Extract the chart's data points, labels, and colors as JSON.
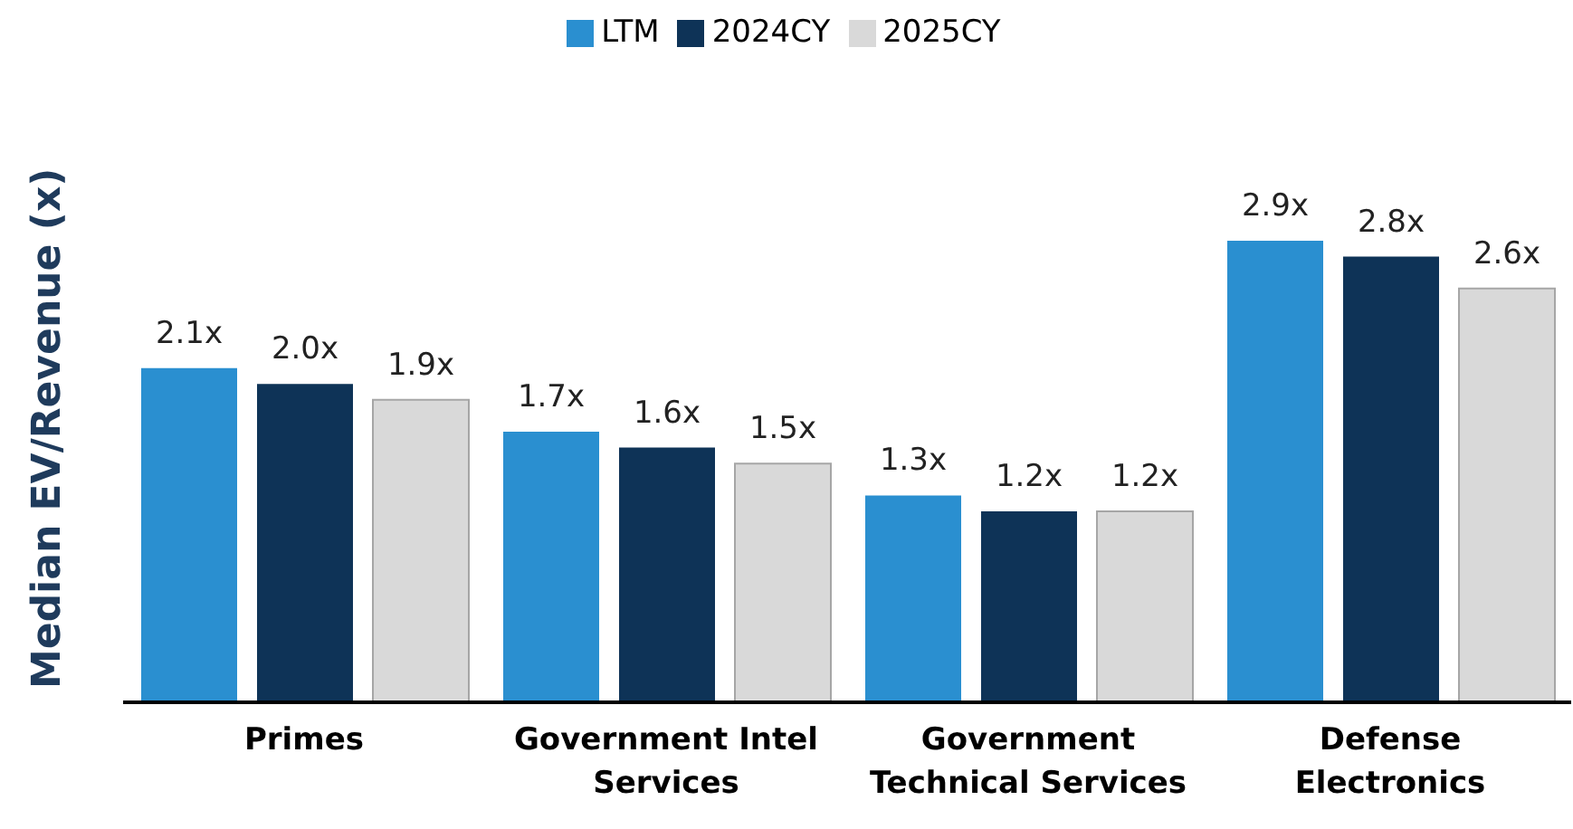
{
  "chart_data": {
    "type": "bar",
    "ylabel": "Median EV/Revenue (x)",
    "categories": [
      "Primes",
      "Government Intel Services",
      "Government Technical Services",
      "Defense Electronics"
    ],
    "series": [
      {
        "name": "LTM",
        "color": "#2a8fd0",
        "values": [
          2.1,
          1.7,
          1.3,
          2.9
        ],
        "value_labels": [
          "2.1x",
          "1.7x",
          "1.3x",
          "2.9x"
        ]
      },
      {
        "name": "2024CY",
        "color": "#0e3357",
        "values": [
          2.0,
          1.6,
          1.2,
          2.8
        ],
        "value_labels": [
          "2.0x",
          "1.6x",
          "1.2x",
          "2.8x"
        ]
      },
      {
        "name": "2025CY",
        "color": "#d9d9d9",
        "values": [
          1.9,
          1.5,
          1.2,
          2.6
        ],
        "value_labels": [
          "1.9x",
          "1.5x",
          "1.2x",
          "2.6x"
        ]
      }
    ],
    "legend": "top",
    "grid": false
  }
}
